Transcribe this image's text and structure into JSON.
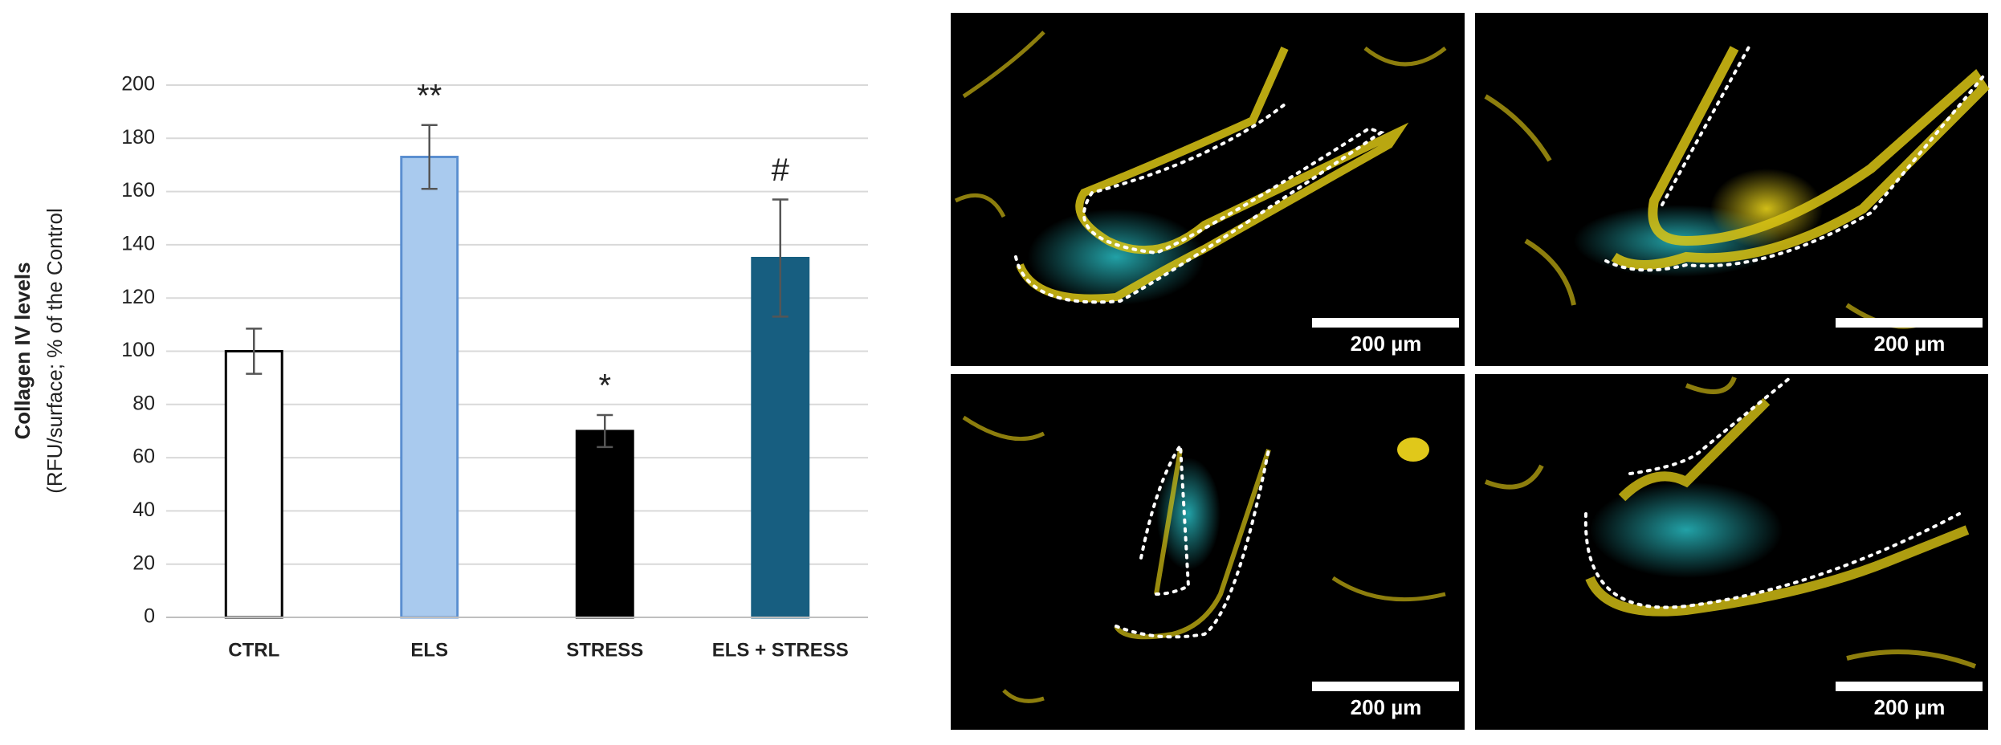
{
  "chart_data": {
    "type": "bar",
    "y_label": "Collagen IV levels",
    "y_sublabel": "(RFU/surface; % of the Control",
    "categories": [
      "CTRL",
      "ELS",
      "STRESS",
      "ELS + STRESS"
    ],
    "values": [
      100,
      173,
      70,
      135
    ],
    "errors": [
      8.5,
      12,
      6,
      22
    ],
    "colors": [
      "#ffffff",
      "#a9caee",
      "#000000",
      "#175e80"
    ],
    "edge_colors": [
      "#000000",
      "#5b8fd0",
      "#000000",
      "#175e80"
    ],
    "annotations": [
      {
        "category": 1,
        "text": "**"
      },
      {
        "category": 2,
        "text": "*"
      },
      {
        "category": 3,
        "text": "#"
      }
    ],
    "ylim": [
      0,
      200
    ],
    "yticks": [
      0,
      20,
      40,
      60,
      80,
      100,
      120,
      140,
      160,
      180,
      200
    ],
    "grid": true
  },
  "images": [
    {
      "scale_bar": "200 µm"
    },
    {
      "scale_bar": "200 µm"
    },
    {
      "scale_bar": "200 µm"
    },
    {
      "scale_bar": "200 µm"
    }
  ]
}
